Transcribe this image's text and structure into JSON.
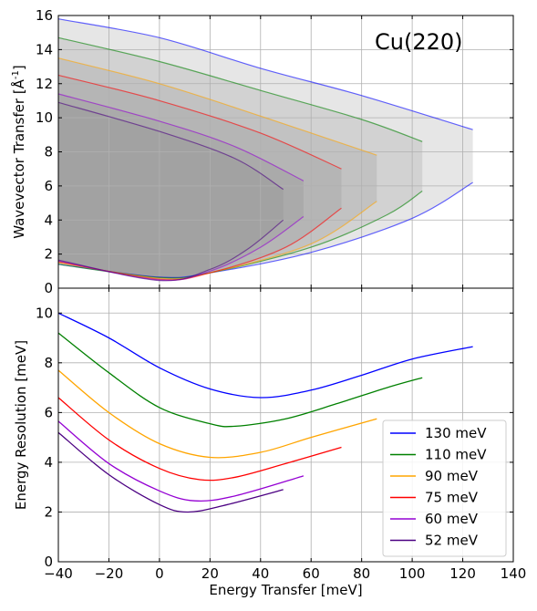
{
  "chart_data": [
    {
      "type": "area",
      "ylabel": "Wavevector Transfer [Å",
      "ylabel_sup": "-1",
      "ylabel_close": "]",
      "annotation": "Cu(220)",
      "xlim": [
        -40,
        140
      ],
      "ylim": [
        0,
        16
      ],
      "yticks": [
        "0",
        "2",
        "4",
        "6",
        "8",
        "10",
        "12",
        "14",
        "16"
      ],
      "grid": true,
      "series": [
        {
          "energy_meV": 130,
          "color": "#0000ff",
          "edge_x": 124,
          "upper": [
            [
              -40,
              15.8
            ],
            [
              0,
              14.7
            ],
            [
              40,
              12.9
            ],
            [
              80,
              11.3
            ],
            [
              124,
              9.3
            ]
          ],
          "lower": [
            [
              -40,
              1.4
            ],
            [
              0,
              0.65
            ],
            [
              20,
              0.9
            ],
            [
              60,
              2.1
            ],
            [
              100,
              4.1
            ],
            [
              124,
              6.2
            ]
          ]
        },
        {
          "energy_meV": 110,
          "color": "#008000",
          "edge_x": 104,
          "upper": [
            [
              -40,
              14.7
            ],
            [
              0,
              13.3
            ],
            [
              40,
              11.6
            ],
            [
              80,
              9.9
            ],
            [
              104,
              8.6
            ]
          ],
          "lower": [
            [
              -40,
              1.4
            ],
            [
              0,
              0.62
            ],
            [
              20,
              0.9
            ],
            [
              60,
              2.4
            ],
            [
              90,
              4.3
            ],
            [
              104,
              5.7
            ]
          ]
        },
        {
          "energy_meV": 90,
          "color": "#ffa500",
          "edge_x": 86,
          "upper": [
            [
              -40,
              13.5
            ],
            [
              0,
              12.0
            ],
            [
              40,
              10.1
            ],
            [
              86,
              7.8
            ]
          ],
          "lower": [
            [
              -40,
              1.5
            ],
            [
              0,
              0.58
            ],
            [
              20,
              0.9
            ],
            [
              60,
              2.6
            ],
            [
              86,
              5.1
            ]
          ]
        },
        {
          "energy_meV": 75,
          "color": "#ff0000",
          "edge_x": 72,
          "upper": [
            [
              -40,
              12.5
            ],
            [
              0,
              11.0
            ],
            [
              40,
              9.1
            ],
            [
              72,
              7.0
            ]
          ],
          "lower": [
            [
              -40,
              1.55
            ],
            [
              0,
              0.52
            ],
            [
              20,
              0.9
            ],
            [
              50,
              2.4
            ],
            [
              72,
              4.7
            ]
          ]
        },
        {
          "energy_meV": 60,
          "color": "#9400d3",
          "edge_x": 57,
          "upper": [
            [
              -40,
              11.4
            ],
            [
              0,
              9.8
            ],
            [
              30,
              8.3
            ],
            [
              57,
              6.3
            ]
          ],
          "lower": [
            [
              -40,
              1.6
            ],
            [
              0,
              0.48
            ],
            [
              20,
              1.0
            ],
            [
              40,
              2.4
            ],
            [
              57,
              4.2
            ]
          ]
        },
        {
          "energy_meV": 52,
          "color": "#4b0082",
          "edge_x": 49,
          "upper": [
            [
              -40,
              10.9
            ],
            [
              0,
              9.2
            ],
            [
              30,
              7.6
            ],
            [
              49,
              5.8
            ]
          ],
          "lower": [
            [
              -40,
              1.65
            ],
            [
              0,
              0.45
            ],
            [
              20,
              1.1
            ],
            [
              35,
              2.3
            ],
            [
              49,
              4.0
            ]
          ]
        }
      ]
    },
    {
      "type": "line",
      "xlabel": "Energy Transfer [meV]",
      "ylabel": "Energy Resolution [meV]",
      "xlim": [
        -40,
        140
      ],
      "ylim": [
        0,
        11
      ],
      "xticks": [
        "−40",
        "−20",
        "0",
        "20",
        "40",
        "60",
        "80",
        "100",
        "120",
        "140"
      ],
      "yticks": [
        "0",
        "2",
        "4",
        "6",
        "8",
        "10"
      ],
      "grid": true,
      "legend_position": "lower-right",
      "series": [
        {
          "name": "130 meV",
          "color": "#0000ff",
          "points": [
            [
              -40,
              10.0
            ],
            [
              -20,
              9.0
            ],
            [
              0,
              7.8
            ],
            [
              20,
              6.95
            ],
            [
              40,
              6.6
            ],
            [
              60,
              6.9
            ],
            [
              80,
              7.5
            ],
            [
              100,
              8.15
            ],
            [
              124,
              8.65
            ]
          ]
        },
        {
          "name": "110 meV",
          "color": "#008000",
          "points": [
            [
              -40,
              9.2
            ],
            [
              -20,
              7.6
            ],
            [
              0,
              6.2
            ],
            [
              20,
              5.55
            ],
            [
              30,
              5.45
            ],
            [
              50,
              5.75
            ],
            [
              70,
              6.35
            ],
            [
              90,
              7.0
            ],
            [
              104,
              7.4
            ]
          ]
        },
        {
          "name": "90 meV",
          "color": "#ffa500",
          "points": [
            [
              -40,
              7.7
            ],
            [
              -20,
              6.0
            ],
            [
              0,
              4.75
            ],
            [
              20,
              4.2
            ],
            [
              40,
              4.4
            ],
            [
              60,
              5.0
            ],
            [
              86,
              5.75
            ]
          ]
        },
        {
          "name": "75 meV",
          "color": "#ff0000",
          "points": [
            [
              -40,
              6.6
            ],
            [
              -20,
              4.9
            ],
            [
              0,
              3.75
            ],
            [
              16,
              3.3
            ],
            [
              30,
              3.4
            ],
            [
              50,
              3.95
            ],
            [
              72,
              4.6
            ]
          ]
        },
        {
          "name": "60 meV",
          "color": "#9400d3",
          "points": [
            [
              -40,
              5.65
            ],
            [
              -20,
              3.95
            ],
            [
              0,
              2.85
            ],
            [
              14,
              2.45
            ],
            [
              30,
              2.65
            ],
            [
              57,
              3.45
            ]
          ]
        },
        {
          "name": "52 meV",
          "color": "#4b0082",
          "points": [
            [
              -40,
              5.2
            ],
            [
              -20,
              3.5
            ],
            [
              0,
              2.3
            ],
            [
              11,
              2.0
            ],
            [
              25,
              2.25
            ],
            [
              49,
              2.9
            ]
          ]
        }
      ]
    }
  ]
}
